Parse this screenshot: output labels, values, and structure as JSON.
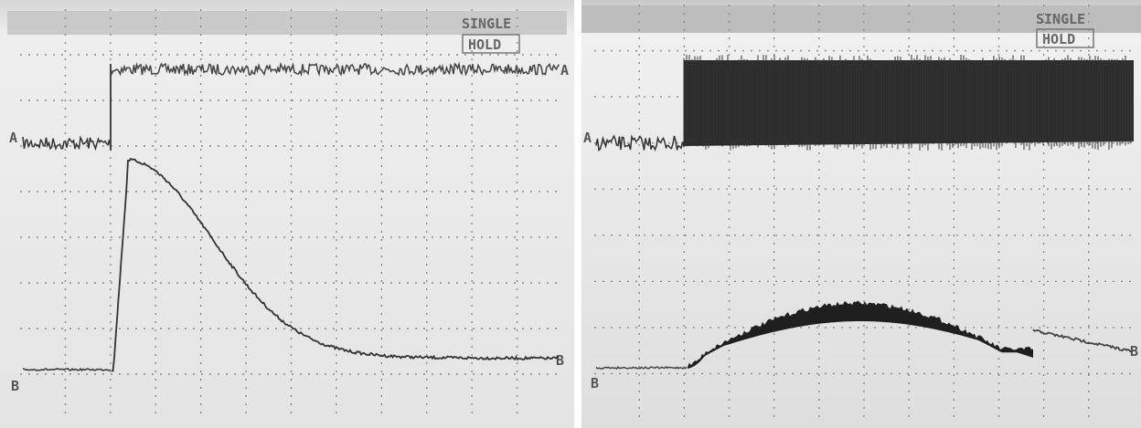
{
  "panels": [
    {
      "mode": "SINGLE",
      "status": "HOLD",
      "traces": [
        "A",
        "B"
      ]
    },
    {
      "mode": "SINGLE",
      "status": "HOLD",
      "traces": [
        "A",
        "B"
      ]
    }
  ]
}
